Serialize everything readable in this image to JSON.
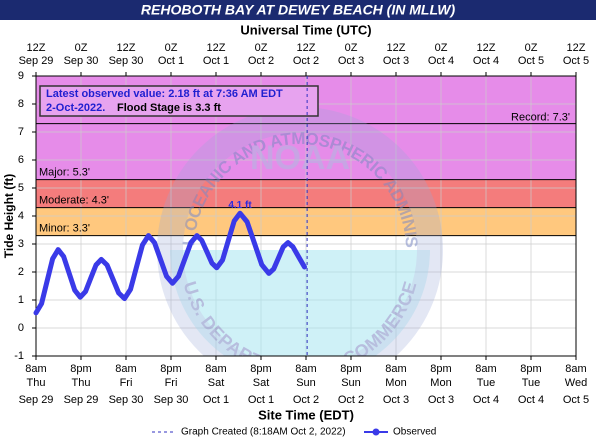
{
  "chart_data": {
    "type": "line",
    "title": "REHOBOTH BAY AT DEWEY BEACH (IN MLLW)",
    "x2_label": "Universal Time (UTC)",
    "xlabel": "Site Time (EDT)",
    "ylabel": "Tide Height (ft)",
    "xlim": [
      0,
      144
    ],
    "ylim": [
      -1,
      9
    ],
    "yticks": [
      -1,
      0,
      1,
      2,
      3,
      4,
      5,
      6,
      7,
      8,
      9
    ],
    "xticks": [
      {
        "value": 0,
        "label": "8am",
        "day": "Thu",
        "date": "Sep 29"
      },
      {
        "value": 12,
        "label": "8pm",
        "day": "Thu",
        "date": "Sep 29"
      },
      {
        "value": 24,
        "label": "8am",
        "day": "Fri",
        "date": "Sep 30"
      },
      {
        "value": 36,
        "label": "8pm",
        "day": "Fri",
        "date": "Sep 30"
      },
      {
        "value": 48,
        "label": "8am",
        "day": "Sat",
        "date": "Oct 1"
      },
      {
        "value": 60,
        "label": "8pm",
        "day": "Sat",
        "date": "Oct 1"
      },
      {
        "value": 72,
        "label": "8am",
        "day": "Sun",
        "date": "Oct 2"
      },
      {
        "value": 84,
        "label": "8pm",
        "day": "Sun",
        "date": "Oct 2"
      },
      {
        "value": 96,
        "label": "8am",
        "day": "Mon",
        "date": "Oct 3"
      },
      {
        "value": 108,
        "label": "8pm",
        "day": "Mon",
        "date": "Oct 3"
      },
      {
        "value": 120,
        "label": "8am",
        "day": "Tue",
        "date": "Oct 4"
      },
      {
        "value": 132,
        "label": "8pm",
        "day": "Tue",
        "date": "Oct 4"
      },
      {
        "value": 144,
        "label": "8am",
        "day": "Wed",
        "date": "Oct 5"
      }
    ],
    "x2ticks": [
      {
        "value": 0,
        "label": "12Z",
        "date": "Sep 29"
      },
      {
        "value": 12,
        "label": "0Z",
        "date": "Sep 30"
      },
      {
        "value": 24,
        "label": "12Z",
        "date": "Sep 30"
      },
      {
        "value": 36,
        "label": "0Z",
        "date": "Oct 1"
      },
      {
        "value": 48,
        "label": "12Z",
        "date": "Oct 1"
      },
      {
        "value": 60,
        "label": "0Z",
        "date": "Oct 2"
      },
      {
        "value": 72,
        "label": "12Z",
        "date": "Oct 2"
      },
      {
        "value": 84,
        "label": "0Z",
        "date": "Oct 3"
      },
      {
        "value": 96,
        "label": "12Z",
        "date": "Oct 3"
      },
      {
        "value": 108,
        "label": "0Z",
        "date": "Oct 4"
      },
      {
        "value": 120,
        "label": "12Z",
        "date": "Oct 4"
      },
      {
        "value": 132,
        "label": "0Z",
        "date": "Oct 5"
      },
      {
        "value": 144,
        "label": "12Z",
        "date": "Oct 5"
      }
    ],
    "grid": true,
    "flood_stages": [
      {
        "label": "Major: 5.3'",
        "value": 5.3,
        "color": "#e68ce9"
      },
      {
        "label": "Moderate: 4.3'",
        "value": 4.3,
        "color": "#f47c7c"
      },
      {
        "label": "Minor: 3.3'",
        "value": 3.3,
        "color": "#ffc87e"
      }
    ],
    "record": {
      "label": "Record: 7.3'",
      "value": 7.3
    },
    "x": [
      0,
      1.48,
      2.95,
      4.43,
      5.9,
      7.38,
      8.85,
      10.33,
      11.8,
      13.2,
      14.6,
      16.0,
      17.4,
      18.95,
      20.5,
      22.05,
      23.6,
      25.2,
      26.8,
      28.4,
      30.0,
      31.6,
      33.2,
      34.8,
      36.4,
      38.0,
      39.65,
      41.3,
      42.9,
      44.2,
      45.55,
      46.9,
      48.2,
      49.75,
      51.3,
      52.85,
      54.4,
      56.3,
      58.25,
      60.2,
      62.1,
      63.4,
      64.65,
      65.9,
      67.2,
      68.5,
      70.0,
      71.6
    ],
    "series": [
      {
        "name": "Observed",
        "color": "#3a3ae8",
        "values": [
          0.54,
          0.87,
          1.67,
          2.47,
          2.8,
          2.55,
          1.95,
          1.35,
          1.1,
          1.3,
          1.78,
          2.25,
          2.45,
          2.25,
          1.75,
          1.25,
          1.05,
          1.38,
          2.18,
          2.97,
          3.3,
          3.05,
          2.45,
          1.85,
          1.6,
          1.85,
          2.45,
          3.05,
          3.3,
          3.13,
          2.73,
          2.32,
          2.15,
          2.43,
          3.13,
          3.82,
          4.1,
          3.79,
          3.03,
          2.26,
          1.95,
          2.11,
          2.5,
          2.89,
          3.05,
          2.9,
          2.55,
          2.18
        ]
      }
    ],
    "peak_label": {
      "x": 54.4,
      "value": 4.1,
      "text": "4.1 ft"
    },
    "created_line": {
      "name": "Graph Created (8:18AM Oct 2, 2022)",
      "x": 72.3,
      "color": "#3030c0"
    },
    "info": {
      "line1": "Latest observed value: 2.18 ft at 7:36 AM EDT",
      "line2_date": "2-Oct-2022.",
      "line2_text": "Flood Stage is 3.3 ft"
    },
    "watermark": {
      "ring": "NATIONAL OCEANIC AND ATMOSPHERIC ADMINISTRATION",
      "bottom": "U.S. DEPARTMENT OF COMMERCE",
      "center": "NOAA"
    }
  }
}
